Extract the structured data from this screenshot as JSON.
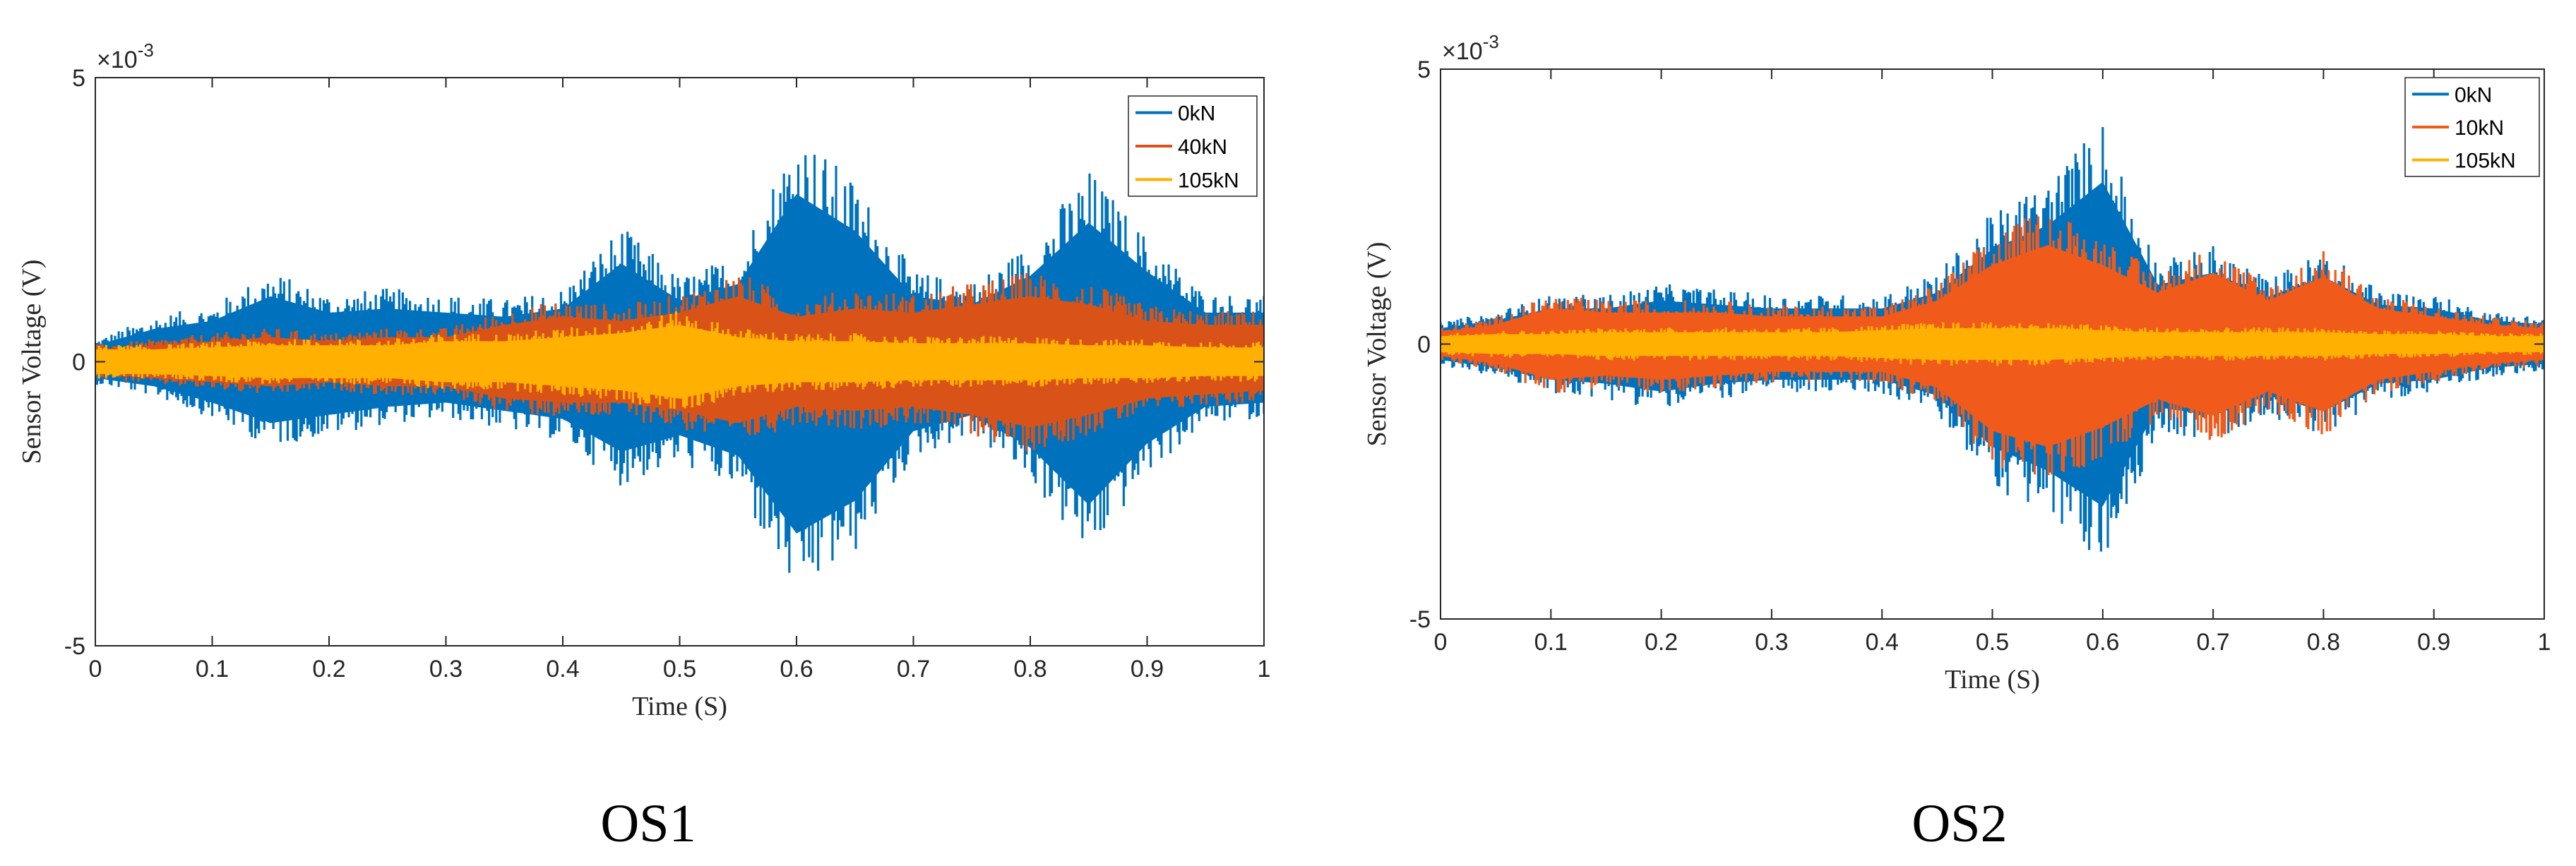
{
  "figure": {
    "captions": [
      "OS1",
      "OS2"
    ]
  },
  "chart_data": [
    {
      "type": "line",
      "title": "",
      "xlabel": "Time (S)",
      "ylabel": "Sensor Voltage (V)",
      "y_multiplier": "×10",
      "y_multiplier_exp": "-3",
      "xlim": [
        0,
        1
      ],
      "ylim": [
        -5,
        5
      ],
      "xticks": [
        0,
        0.1,
        0.2,
        0.3,
        0.4,
        0.5,
        0.6,
        0.7,
        0.8,
        0.9,
        1
      ],
      "xtick_labels": [
        "0",
        "0.1",
        "0.2",
        "0.3",
        "0.4",
        "0.5",
        "0.6",
        "0.7",
        "0.8",
        "0.9",
        "1"
      ],
      "yticks": [
        -5,
        0,
        5
      ],
      "ytick_labels": [
        "-5",
        "0",
        "5"
      ],
      "legend_position": "top-right",
      "series": [
        {
          "name": "0kN",
          "color": "#0072BD",
          "x": [
            0,
            0.05,
            0.1,
            0.15,
            0.2,
            0.25,
            0.3,
            0.35,
            0.4,
            0.45,
            0.5,
            0.55,
            0.6,
            0.65,
            0.7,
            0.75,
            0.8,
            0.85,
            0.9,
            0.95,
            1
          ],
          "upper": [
            0.4,
            0.8,
            1.0,
            1.6,
            1.2,
            1.3,
            1.2,
            1.1,
            1.3,
            2.4,
            1.5,
            1.9,
            4.1,
            3.2,
            1.6,
            1.4,
            2.1,
            3.4,
            2.2,
            1.2,
            1.2
          ],
          "lower": [
            -0.4,
            -0.6,
            -1.0,
            -1.5,
            -1.3,
            -1.1,
            -1.0,
            -1.2,
            -1.4,
            -2.2,
            -1.8,
            -2.3,
            -4.2,
            -3.4,
            -1.7,
            -1.3,
            -2.1,
            -3.5,
            -2.0,
            -1.1,
            -1.0
          ]
        },
        {
          "name": "40kN",
          "color": "#D95319",
          "x": [
            0,
            0.05,
            0.1,
            0.15,
            0.2,
            0.25,
            0.3,
            0.35,
            0.4,
            0.45,
            0.5,
            0.55,
            0.6,
            0.65,
            0.7,
            0.75,
            0.8,
            0.85,
            0.9,
            0.95,
            1
          ],
          "upper": [
            0.3,
            0.4,
            0.5,
            0.6,
            0.5,
            0.6,
            0.6,
            0.9,
            1.1,
            1.0,
            1.2,
            1.6,
            1.1,
            1.3,
            1.2,
            1.4,
            1.6,
            1.4,
            1.0,
            0.9,
            0.9
          ],
          "lower": [
            -0.3,
            -0.4,
            -0.5,
            -0.6,
            -0.5,
            -0.6,
            -0.6,
            -0.9,
            -1.0,
            -1.0,
            -1.2,
            -1.5,
            -1.1,
            -1.2,
            -1.1,
            -1.3,
            -1.6,
            -1.3,
            -0.9,
            -0.8,
            -0.7
          ]
        },
        {
          "name": "105kN",
          "color": "#FFB000",
          "x": [
            0,
            0.05,
            0.1,
            0.15,
            0.2,
            0.25,
            0.3,
            0.35,
            0.4,
            0.45,
            0.5,
            0.55,
            0.6,
            0.65,
            0.7,
            0.75,
            0.8,
            0.85,
            0.9,
            0.95,
            1
          ],
          "upper": [
            0.3,
            0.3,
            0.35,
            0.4,
            0.4,
            0.4,
            0.5,
            0.5,
            0.6,
            0.7,
            0.9,
            0.6,
            0.5,
            0.5,
            0.45,
            0.45,
            0.45,
            0.4,
            0.4,
            0.35,
            0.35
          ],
          "lower": [
            -0.3,
            -0.3,
            -0.35,
            -0.4,
            -0.4,
            -0.4,
            -0.5,
            -0.5,
            -0.6,
            -0.7,
            -0.9,
            -0.6,
            -0.5,
            -0.5,
            -0.45,
            -0.45,
            -0.45,
            -0.4,
            -0.4,
            -0.35,
            -0.35
          ]
        }
      ]
    },
    {
      "type": "line",
      "title": "",
      "xlabel": "Time (S)",
      "ylabel": "Sensor Voltage (V)",
      "y_multiplier": "×10",
      "y_multiplier_exp": "-3",
      "xlim": [
        0,
        1
      ],
      "ylim": [
        -5,
        5
      ],
      "xticks": [
        0,
        0.1,
        0.2,
        0.3,
        0.4,
        0.5,
        0.6,
        0.7,
        0.8,
        0.9,
        1
      ],
      "xtick_labels": [
        "0",
        "0.1",
        "0.2",
        "0.3",
        "0.4",
        "0.5",
        "0.6",
        "0.7",
        "0.8",
        "0.9",
        "1"
      ],
      "yticks": [
        -5,
        0,
        5
      ],
      "ytick_labels": [
        "-5",
        "0",
        "5"
      ],
      "legend_position": "top-right",
      "series": [
        {
          "name": "0kN",
          "color": "#0072BD",
          "x": [
            0,
            0.05,
            0.1,
            0.15,
            0.2,
            0.25,
            0.3,
            0.35,
            0.4,
            0.45,
            0.5,
            0.55,
            0.6,
            0.65,
            0.7,
            0.75,
            0.8,
            0.85,
            0.9,
            0.95,
            1
          ],
          "upper": [
            0.4,
            0.6,
            0.9,
            0.9,
            1.1,
            1.0,
            0.9,
            0.9,
            0.9,
            1.3,
            2.4,
            3.0,
            4.1,
            1.5,
            1.8,
            1.2,
            1.7,
            1.0,
            0.9,
            0.6,
            0.5
          ],
          "lower": [
            -0.4,
            -0.6,
            -0.9,
            -1.0,
            -1.2,
            -1.0,
            -0.9,
            -0.9,
            -0.9,
            -1.3,
            -2.6,
            -3.2,
            -4.1,
            -1.6,
            -1.8,
            -1.3,
            -1.7,
            -1.0,
            -0.9,
            -0.6,
            -0.5
          ]
        },
        {
          "name": "10kN",
          "color": "#F05A1A",
          "x": [
            0,
            0.05,
            0.1,
            0.15,
            0.2,
            0.25,
            0.3,
            0.35,
            0.4,
            0.45,
            0.5,
            0.55,
            0.6,
            0.65,
            0.7,
            0.75,
            0.8,
            0.85,
            0.9,
            0.95,
            1
          ],
          "upper": [
            0.3,
            0.5,
            0.9,
            0.8,
            0.8,
            0.8,
            0.7,
            0.7,
            0.7,
            1.1,
            2.0,
            2.5,
            2.0,
            1.3,
            1.8,
            1.1,
            1.7,
            0.9,
            0.7,
            0.5,
            0.4
          ],
          "lower": [
            -0.3,
            -0.5,
            -0.9,
            -0.8,
            -0.9,
            -0.8,
            -0.7,
            -0.7,
            -0.7,
            -1.1,
            -2.2,
            -2.6,
            -2.1,
            -1.4,
            -1.8,
            -1.2,
            -1.7,
            -0.9,
            -0.7,
            -0.5,
            -0.4
          ]
        },
        {
          "name": "105kN",
          "color": "#FFB000",
          "x": [
            0,
            0.05,
            0.1,
            0.15,
            0.2,
            0.25,
            0.3,
            0.35,
            0.4,
            0.45,
            0.5,
            0.55,
            0.6,
            0.65,
            0.7,
            0.75,
            0.8,
            0.85,
            0.9,
            0.95,
            1
          ],
          "upper": [
            0.2,
            0.25,
            0.25,
            0.3,
            0.3,
            0.3,
            0.3,
            0.3,
            0.35,
            0.4,
            0.4,
            0.4,
            0.35,
            0.3,
            0.3,
            0.3,
            0.3,
            0.25,
            0.25,
            0.2,
            0.2
          ],
          "lower": [
            -0.2,
            -0.25,
            -0.25,
            -0.3,
            -0.3,
            -0.3,
            -0.3,
            -0.3,
            -0.35,
            -0.4,
            -0.4,
            -0.4,
            -0.35,
            -0.3,
            -0.3,
            -0.3,
            -0.3,
            -0.25,
            -0.25,
            -0.2,
            -0.2
          ]
        }
      ]
    }
  ]
}
